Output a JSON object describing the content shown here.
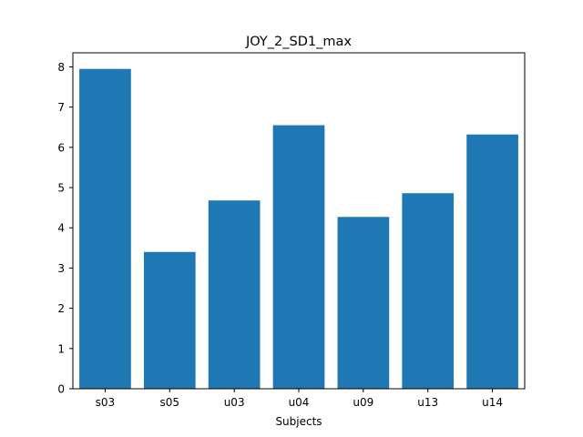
{
  "chart_data": {
    "type": "bar",
    "title": "JOY_2_SD1_max",
    "xlabel": "Subjects",
    "ylabel": "",
    "categories": [
      "s03",
      "s05",
      "u03",
      "u04",
      "u09",
      "u13",
      "u14"
    ],
    "values": [
      7.95,
      3.4,
      4.68,
      6.55,
      4.27,
      4.86,
      6.32
    ],
    "ylim": [
      0,
      8.35
    ],
    "yticks": [
      0,
      1,
      2,
      3,
      4,
      5,
      6,
      7,
      8
    ],
    "grid": false,
    "colors": {
      "bar": "#1f77b4",
      "axis": "#000000",
      "background": "#ffffff"
    }
  }
}
